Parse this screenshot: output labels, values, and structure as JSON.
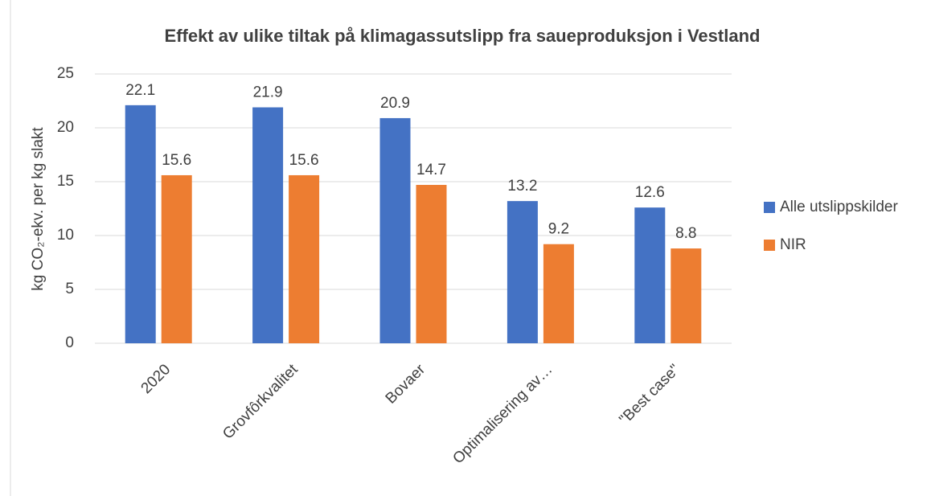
{
  "chart_data": {
    "type": "bar",
    "title": "Effekt av ulike tiltak på klimagassutslipp fra saueproduksjon i Vestland",
    "ylabel": "kg CO₂-ekv. per kg slakt",
    "categories": [
      "2020",
      "Grovfôrkvalitet",
      "Bovaer",
      "Optimalisering av…",
      "\"Best case\""
    ],
    "series": [
      {
        "name": "Alle utslippskilder",
        "color": "#4472c4",
        "values": [
          22.1,
          21.9,
          20.9,
          13.2,
          12.6
        ]
      },
      {
        "name": "NIR",
        "color": "#ed7d31",
        "values": [
          15.6,
          15.6,
          14.7,
          9.2,
          8.8
        ]
      }
    ],
    "ylim": [
      0,
      25
    ],
    "yticks": [
      0,
      5,
      10,
      15,
      20,
      25
    ],
    "grid": true,
    "legend": "right"
  }
}
